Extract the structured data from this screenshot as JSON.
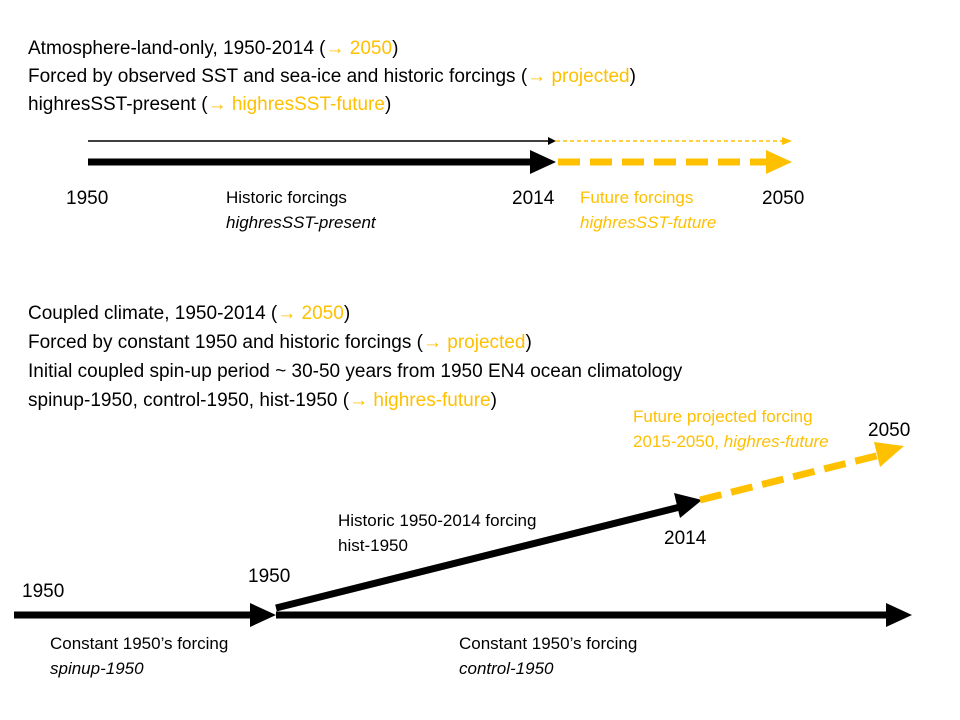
{
  "colors": {
    "black": "#000000",
    "accent": "#FFC000"
  },
  "top_section": {
    "line1": {
      "text": "Atmosphere-land-only, 1950-2014 (",
      "arrow": "→",
      "highlight": "2050",
      "close": ")"
    },
    "line2": {
      "text": "Forced by observed SST and sea-ice and historic forcings (",
      "arrow": "→",
      "highlight": "projected",
      "close": ")"
    },
    "line3": {
      "text": "highresSST-present (",
      "arrow": "→",
      "highlight": "highresSST-future",
      "close": ")"
    },
    "year_start": "1950",
    "year_mid": "2014",
    "year_end": "2050",
    "historic_label": "Historic forcings",
    "historic_experiment": "highresSST-present",
    "future_label": "Future forcings",
    "future_experiment": "highresSST-future"
  },
  "bottom_section": {
    "line1": {
      "text": "Coupled climate, 1950-2014 (",
      "arrow": "→",
      "highlight": "2050",
      "close": ")"
    },
    "line2": {
      "text": "Forced by constant 1950 and historic forcings (",
      "arrow": "→",
      "highlight": "projected",
      "close": ")"
    },
    "line3": {
      "text": "Initial coupled spin-up period ~ 30-50 years from 1950 EN4 ocean climatology"
    },
    "line4": {
      "text": "spinup-1950, control-1950, hist-1950 (",
      "arrow": "→",
      "highlight": "highres-future",
      "close": ")"
    },
    "year_spinup_start": "1950",
    "year_branch": "1950",
    "year_hist_end": "2014",
    "year_future_end": "2050",
    "future_label": "Future projected forcing",
    "future_period": "2015-2050, ",
    "future_experiment": "highres-future",
    "historic_label": "Historic 1950-2014 forcing",
    "historic_experiment": "hist-1950",
    "spinup_label": "Constant 1950’s forcing",
    "spinup_experiment": "spinup-1950",
    "control_label": "Constant 1950’s forcing",
    "control_experiment": "control-1950"
  }
}
